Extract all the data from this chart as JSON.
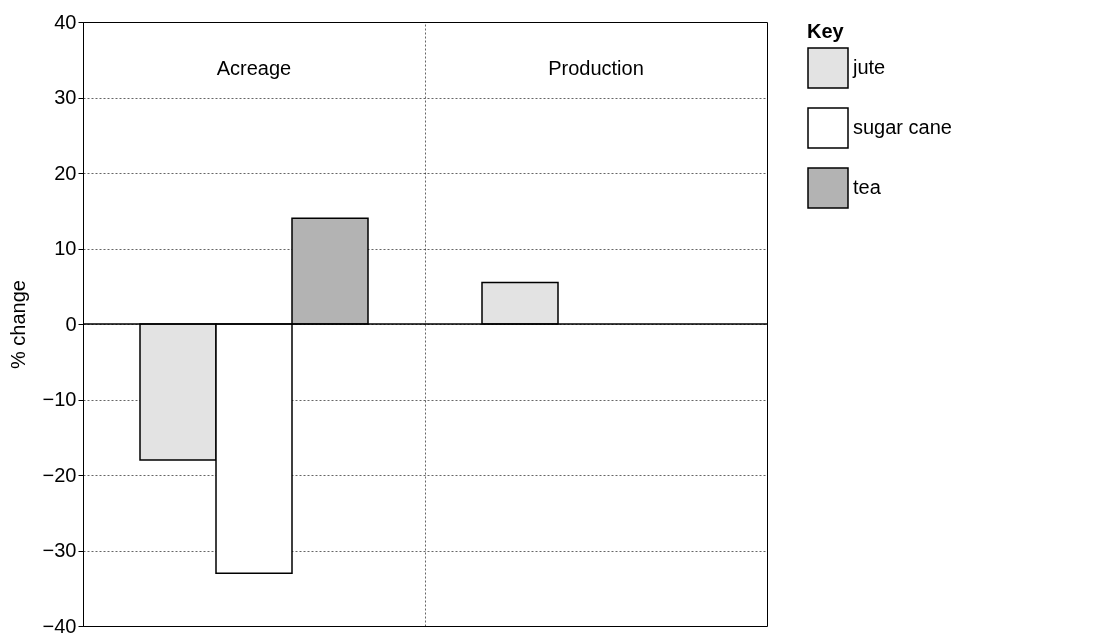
{
  "chart_data": {
    "type": "bar",
    "ylabel": "% change",
    "categories": [
      "Acreage",
      "Production"
    ],
    "series": [
      {
        "name": "jute",
        "color": "#e3e3e3",
        "values": [
          -18,
          5.5
        ]
      },
      {
        "name": "sugar cane",
        "color": "#ffffff",
        "values": [
          -33,
          null
        ]
      },
      {
        "name": "tea",
        "color": "#b3b3b3",
        "values": [
          14,
          null
        ]
      }
    ],
    "ylim": [
      -40,
      40
    ],
    "yticks": [
      -40,
      -30,
      -20,
      -10,
      0,
      10,
      20,
      30,
      40
    ],
    "grid": true,
    "legend": "right",
    "legend_title": "Key",
    "ref_lines": [
      {
        "axis": "y",
        "value": 0,
        "color": "#000000"
      }
    ]
  }
}
